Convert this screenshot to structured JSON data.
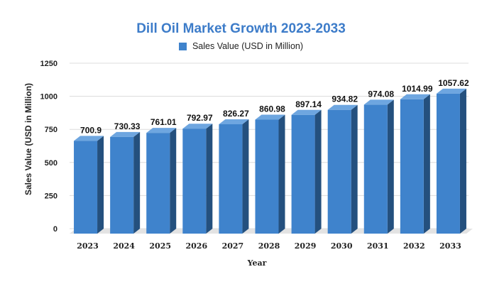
{
  "chart_data": {
    "type": "bar",
    "title": "Dill Oil Market Growth 2023-2033",
    "xlabel": "Year",
    "ylabel": "Sales Value (USD in Million)",
    "categories": [
      "2023",
      "2024",
      "2025",
      "2026",
      "2027",
      "2028",
      "2029",
      "2030",
      "2031",
      "2032",
      "2033"
    ],
    "series": [
      {
        "name": "Sales Value (USD in Million)",
        "values": [
          700.9,
          730.33,
          761.01,
          792.97,
          826.27,
          860.98,
          897.14,
          934.82,
          974.08,
          1014.99,
          1057.62
        ],
        "labels": [
          "700.9",
          "730.33",
          "761.01",
          "792.97",
          "826.27",
          "860.98",
          "897.14",
          "934.82",
          "974.08",
          "1014.99",
          "1057.62"
        ]
      }
    ],
    "yticks": [
      "0",
      "250",
      "500",
      "750",
      "1000",
      "1250"
    ],
    "ylim": [
      0,
      1250
    ],
    "grid": true,
    "legend_position": "top-center",
    "bar_style": "3d",
    "colors": {
      "bar_front": "#3f83cc",
      "bar_side": "#24507e",
      "bar_top": "#6ea6e0",
      "title": "#3d7cc9",
      "floor": "#e3e3e3"
    }
  }
}
